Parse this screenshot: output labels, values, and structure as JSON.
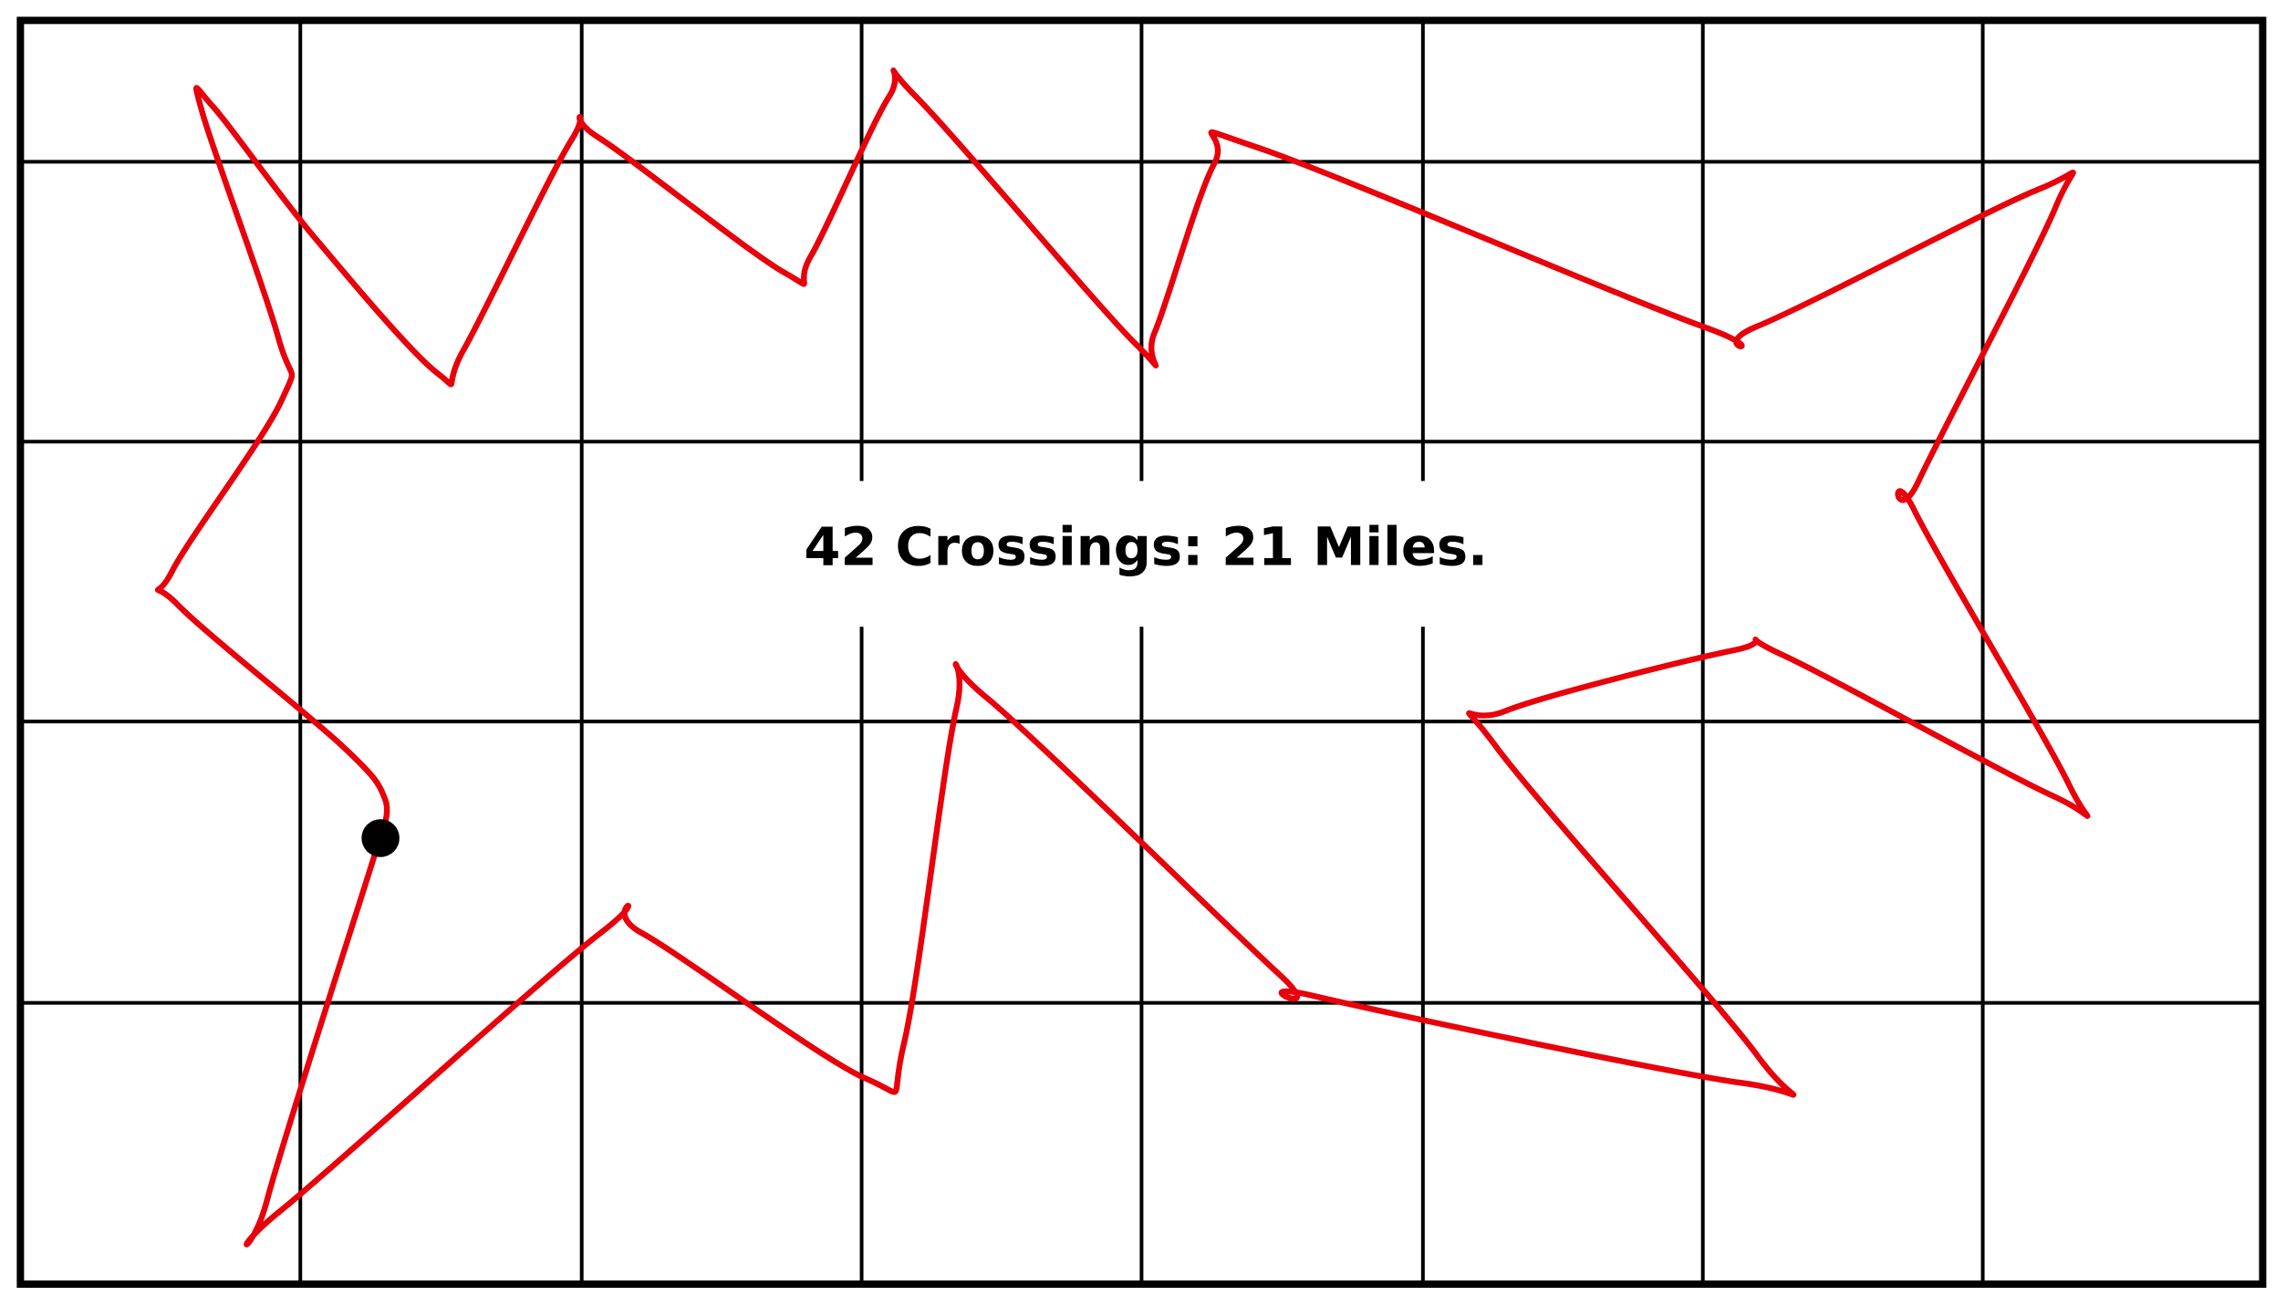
{
  "label": "42 Crossings: 21 Miles."
}
